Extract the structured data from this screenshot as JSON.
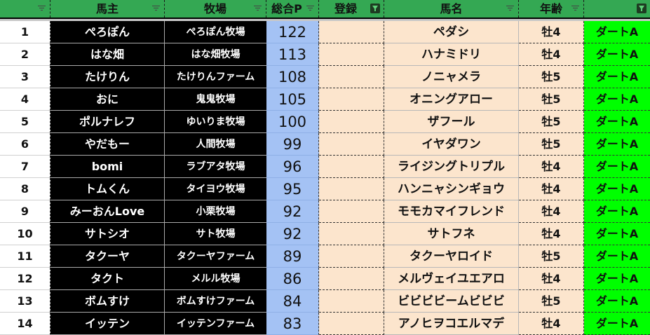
{
  "header": {
    "columns": [
      {
        "label": "",
        "filter": "sort-filter-icon"
      },
      {
        "label": "馬主",
        "filter": "sort-filter-icon"
      },
      {
        "label": "牧場",
        "filter": "sort-filter-icon"
      },
      {
        "label": "総合P",
        "filter": "sort-filter-icon"
      },
      {
        "label": "登録",
        "filter": "active-filter-icon"
      },
      {
        "label": "馬名",
        "filter": "sort-filter-icon"
      },
      {
        "label": "年齢",
        "filter": "sort-filter-icon"
      },
      {
        "label": "",
        "filter": "active-filter-icon"
      }
    ]
  },
  "colors": {
    "header": "#34a853",
    "owner_bg": "#000000",
    "points_bg": "#a4c2f4",
    "horse_bg": "#fce5cd",
    "class_bg": "#00ff00"
  },
  "rows": [
    {
      "rank": "1",
      "owner": "ぺろぽん",
      "farm": "ぺろぽん牧場",
      "points": "122",
      "reg": "",
      "horse": "ペダシ",
      "age": "牡4",
      "class": "ダートA"
    },
    {
      "rank": "2",
      "owner": "はな畑",
      "farm": "はな畑牧場",
      "points": "113",
      "reg": "",
      "horse": "ハナミドリ",
      "age": "牡4",
      "class": "ダートA"
    },
    {
      "rank": "3",
      "owner": "たけりん",
      "farm": "たけりんファーム",
      "points": "108",
      "reg": "",
      "horse": "ノニャメラ",
      "age": "牡5",
      "class": "ダートA"
    },
    {
      "rank": "4",
      "owner": "おに",
      "farm": "鬼鬼牧場",
      "points": "105",
      "reg": "",
      "horse": "オニングアロー",
      "age": "牡5",
      "class": "ダートA"
    },
    {
      "rank": "5",
      "owner": "ポルナレフ",
      "farm": "ゆいりま牧場",
      "points": "100",
      "reg": "",
      "horse": "ザフール",
      "age": "牡5",
      "class": "ダートA"
    },
    {
      "rank": "6",
      "owner": "やだもー",
      "farm": "人間牧場",
      "points": "99",
      "reg": "",
      "horse": "イヤダワン",
      "age": "牡5",
      "class": "ダートA"
    },
    {
      "rank": "7",
      "owner": "bomi",
      "farm": "ラブアタ牧場",
      "points": "96",
      "reg": "",
      "horse": "ライジングトリプル",
      "age": "牡4",
      "class": "ダートA"
    },
    {
      "rank": "8",
      "owner": "トムくん",
      "farm": "タイヨウ牧場",
      "points": "95",
      "reg": "",
      "horse": "ハンニャシンギョウ",
      "age": "牡4",
      "class": "ダートA"
    },
    {
      "rank": "9",
      "owner": "みーおんLove",
      "farm": "小栗牧場",
      "points": "92",
      "reg": "",
      "horse": "モモカマイフレンド",
      "age": "牡4",
      "class": "ダートA"
    },
    {
      "rank": "10",
      "owner": "サトシオ",
      "farm": "サト牧場",
      "points": "92",
      "reg": "",
      "horse": "サトフネ",
      "age": "牡4",
      "class": "ダートA"
    },
    {
      "rank": "11",
      "owner": "タクーヤ",
      "farm": "タクーヤファーム",
      "points": "89",
      "reg": "",
      "horse": "タクーヤロイド",
      "age": "牡5",
      "class": "ダートA"
    },
    {
      "rank": "12",
      "owner": "タクト",
      "farm": "メルル牧場",
      "points": "86",
      "reg": "",
      "horse": "メルヴェイユエアロ",
      "age": "牡4",
      "class": "ダートA"
    },
    {
      "rank": "13",
      "owner": "ボムすけ",
      "farm": "ボムすけファーム",
      "points": "84",
      "reg": "",
      "horse": "ビビビビームビビビ",
      "age": "牡5",
      "class": "ダートA"
    },
    {
      "rank": "14",
      "owner": "イッテン",
      "farm": "イッテンファーム",
      "points": "83",
      "reg": "",
      "horse": "アノヒヲコエルマデ",
      "age": "牡4",
      "class": "ダートA"
    }
  ]
}
